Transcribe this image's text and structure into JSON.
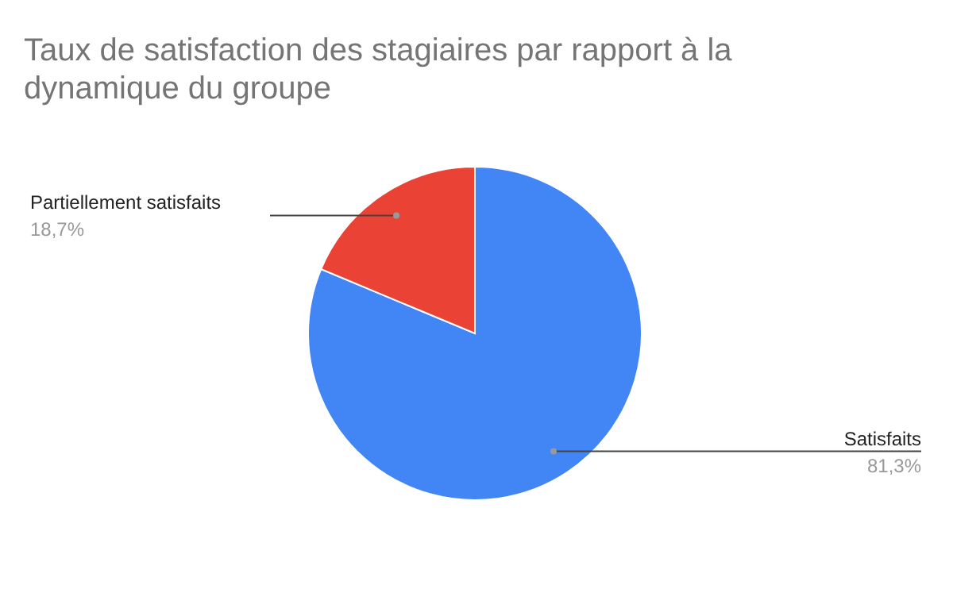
{
  "chart_data": {
    "type": "pie",
    "title": "Taux de satisfaction des stagiaires par rapport à la dynamique du groupe",
    "categories": [
      "Satisfaits",
      "Partiellement satisfaits"
    ],
    "values": [
      81.3,
      18.7
    ],
    "colors": [
      "#4285f4",
      "#ea4335"
    ],
    "value_labels": [
      "81,3%",
      "18,7%"
    ],
    "legend": false
  }
}
